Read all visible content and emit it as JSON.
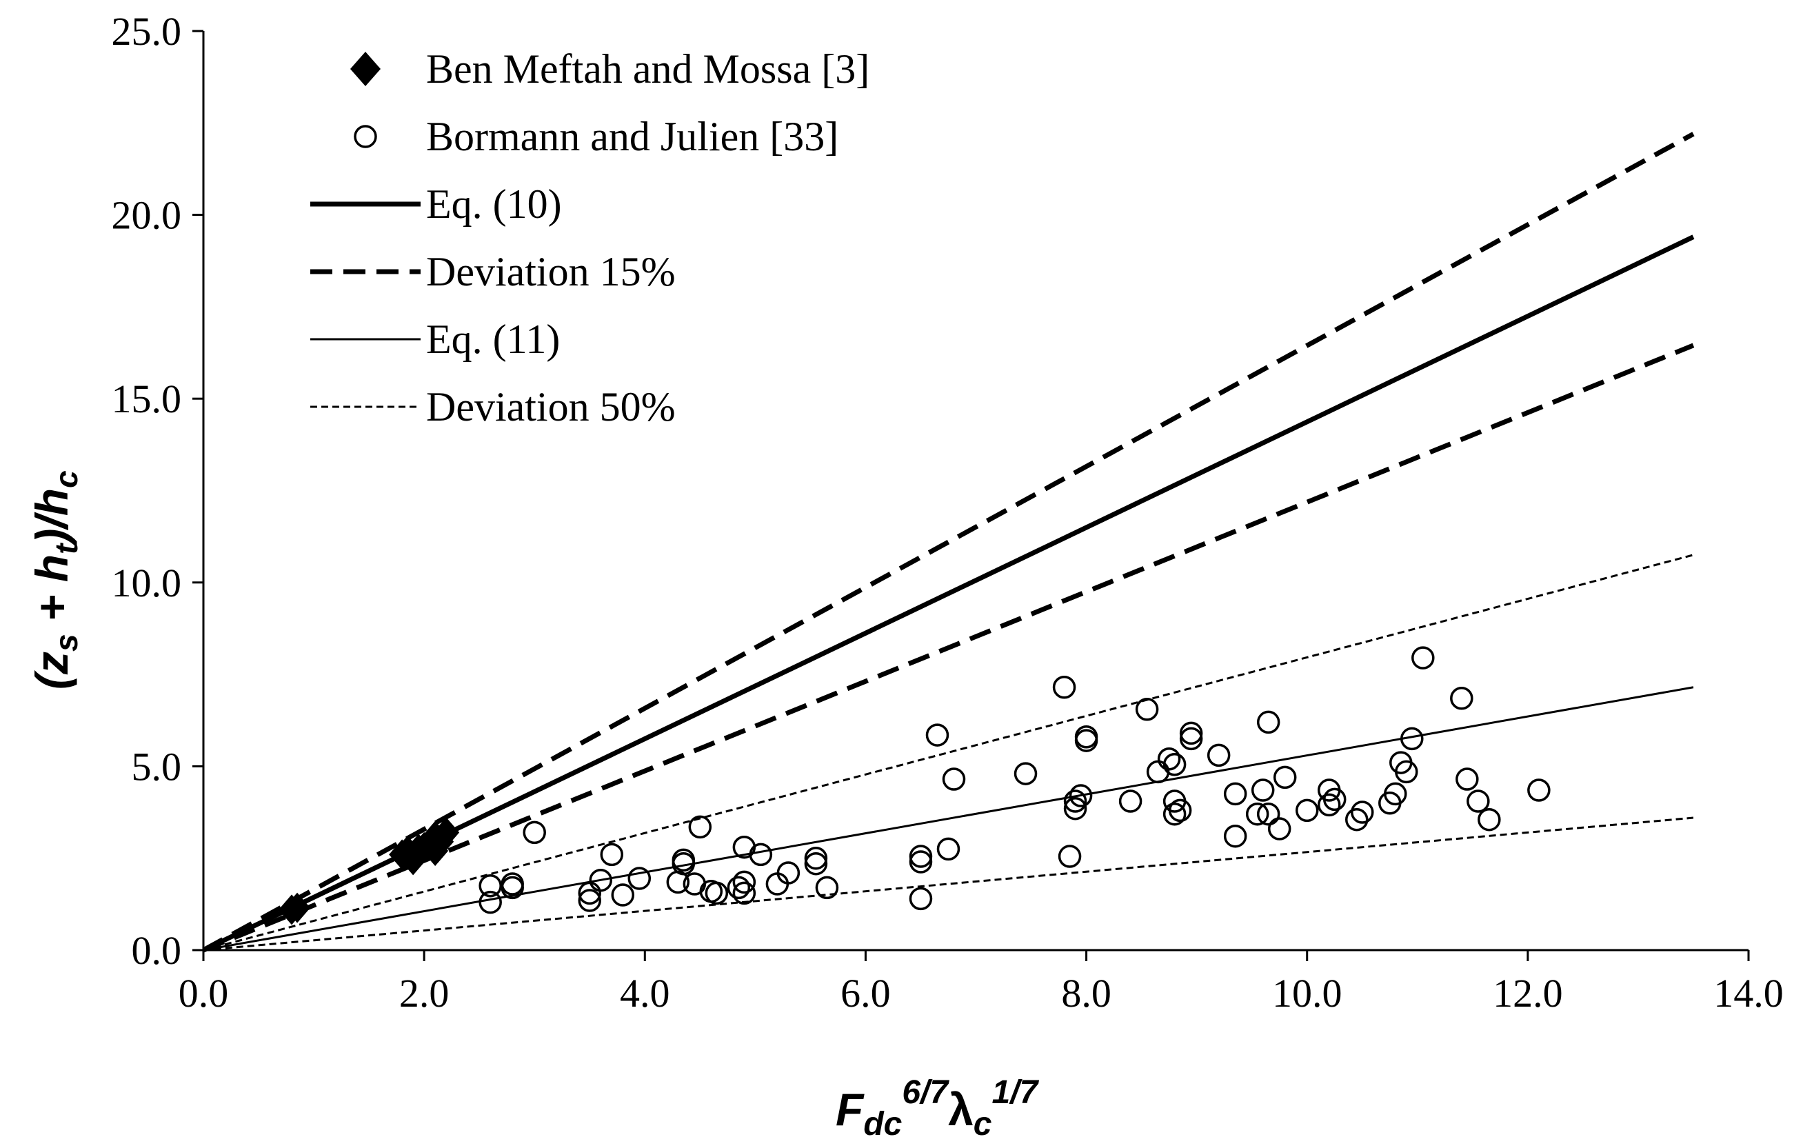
{
  "chart_data": {
    "type": "scatter",
    "title": "",
    "xlabel": {
      "base": "F",
      "base_sub": "dc",
      "base_sup": "6/7",
      "greek": "λ",
      "greek_sub": "c",
      "greek_sup": "1/7"
    },
    "ylabel": {
      "open": "(z",
      "z_sub": "s",
      "plus": " + h",
      "h_sub": "t",
      "close": ")/h",
      "hc_sub": "c"
    },
    "xlim": [
      0,
      14
    ],
    "ylim": [
      0,
      25
    ],
    "x_ticks": [
      "0.0",
      "2.0",
      "4.0",
      "6.0",
      "8.0",
      "10.0",
      "12.0",
      "14.0"
    ],
    "y_ticks": [
      "0.0",
      "5.0",
      "10.0",
      "15.0",
      "20.0",
      "25.0"
    ],
    "x_tick_values": [
      0,
      2,
      4,
      6,
      8,
      10,
      12,
      14
    ],
    "y_tick_values": [
      0,
      5,
      10,
      15,
      20,
      25
    ],
    "legend_position": "top-left",
    "series": [
      {
        "name": "Ben Meftah and Mossa [3]",
        "kind": "points",
        "marker": "diamond",
        "points": [
          [
            0.8,
            1.1
          ],
          [
            0.85,
            1.15
          ],
          [
            1.8,
            2.6
          ],
          [
            1.85,
            2.7
          ],
          [
            1.9,
            2.45
          ],
          [
            1.95,
            2.75
          ],
          [
            2.0,
            2.8
          ],
          [
            2.05,
            2.9
          ],
          [
            2.1,
            3.1
          ],
          [
            2.15,
            2.95
          ],
          [
            2.2,
            3.2
          ],
          [
            2.1,
            2.7
          ]
        ]
      },
      {
        "name": "Bormann and Julien [33]",
        "kind": "points",
        "marker": "circle",
        "points": [
          [
            2.6,
            1.3
          ],
          [
            2.6,
            1.75
          ],
          [
            2.8,
            1.7
          ],
          [
            2.8,
            1.8
          ],
          [
            3.0,
            3.2
          ],
          [
            3.5,
            1.35
          ],
          [
            3.5,
            1.55
          ],
          [
            3.6,
            1.9
          ],
          [
            3.7,
            2.6
          ],
          [
            3.8,
            1.5
          ],
          [
            3.95,
            1.95
          ],
          [
            4.3,
            1.85
          ],
          [
            4.35,
            2.35
          ],
          [
            4.35,
            2.45
          ],
          [
            4.45,
            1.8
          ],
          [
            4.5,
            3.35
          ],
          [
            4.6,
            1.6
          ],
          [
            4.65,
            1.55
          ],
          [
            4.85,
            1.7
          ],
          [
            4.9,
            1.85
          ],
          [
            4.9,
            1.55
          ],
          [
            4.9,
            2.8
          ],
          [
            5.05,
            2.6
          ],
          [
            5.2,
            1.8
          ],
          [
            5.3,
            2.1
          ],
          [
            5.55,
            2.35
          ],
          [
            5.55,
            2.5
          ],
          [
            5.65,
            1.7
          ],
          [
            6.5,
            1.4
          ],
          [
            6.5,
            2.4
          ],
          [
            6.5,
            2.55
          ],
          [
            6.65,
            5.85
          ],
          [
            6.75,
            2.75
          ],
          [
            6.8,
            4.65
          ],
          [
            7.45,
            4.8
          ],
          [
            7.8,
            7.15
          ],
          [
            7.85,
            2.55
          ],
          [
            7.9,
            3.85
          ],
          [
            7.9,
            4.05
          ],
          [
            7.95,
            4.2
          ],
          [
            8.0,
            5.7
          ],
          [
            8.0,
            5.8
          ],
          [
            8.4,
            4.05
          ],
          [
            8.55,
            6.55
          ],
          [
            8.65,
            4.85
          ],
          [
            8.75,
            5.2
          ],
          [
            8.8,
            3.7
          ],
          [
            8.8,
            4.05
          ],
          [
            8.8,
            5.05
          ],
          [
            8.85,
            3.8
          ],
          [
            8.95,
            5.75
          ],
          [
            8.95,
            5.9
          ],
          [
            9.2,
            5.3
          ],
          [
            9.35,
            4.25
          ],
          [
            9.35,
            3.1
          ],
          [
            9.55,
            3.7
          ],
          [
            9.6,
            4.35
          ],
          [
            9.65,
            6.2
          ],
          [
            9.65,
            3.7
          ],
          [
            9.75,
            3.3
          ],
          [
            9.8,
            4.7
          ],
          [
            10.0,
            3.8
          ],
          [
            10.2,
            3.95
          ],
          [
            10.2,
            4.35
          ],
          [
            10.25,
            4.1
          ],
          [
            10.45,
            3.55
          ],
          [
            10.5,
            3.75
          ],
          [
            10.75,
            4.0
          ],
          [
            10.8,
            4.25
          ],
          [
            10.85,
            5.1
          ],
          [
            10.9,
            4.85
          ],
          [
            10.95,
            5.75
          ],
          [
            11.05,
            7.95
          ],
          [
            11.4,
            6.85
          ],
          [
            11.45,
            4.65
          ],
          [
            11.55,
            4.05
          ],
          [
            11.65,
            3.55
          ],
          [
            12.1,
            4.35
          ]
        ]
      },
      {
        "name": "Eq. (10)",
        "kind": "line",
        "dash": "solid",
        "weight": "thick",
        "x": [
          0,
          13.5
        ],
        "y": [
          0,
          19.4
        ]
      },
      {
        "name": "Deviation 15%",
        "kind": "line",
        "dash": "dashed",
        "weight": "thick",
        "lines": [
          {
            "x": [
              0,
              13.5
            ],
            "y": [
              0,
              22.2
            ]
          },
          {
            "x": [
              0,
              13.5
            ],
            "y": [
              0,
              16.45
            ]
          }
        ]
      },
      {
        "name": "Eq. (11)",
        "kind": "line",
        "dash": "solid",
        "weight": "thin",
        "x": [
          0,
          13.5
        ],
        "y": [
          0,
          7.15
        ]
      },
      {
        "name": "Deviation 50%",
        "kind": "line",
        "dash": "dotted-short",
        "weight": "thin",
        "lines": [
          {
            "x": [
              0,
              13.5
            ],
            "y": [
              0,
              10.75
            ]
          },
          {
            "x": [
              0,
              13.5
            ],
            "y": [
              0,
              3.6
            ]
          }
        ]
      }
    ]
  }
}
